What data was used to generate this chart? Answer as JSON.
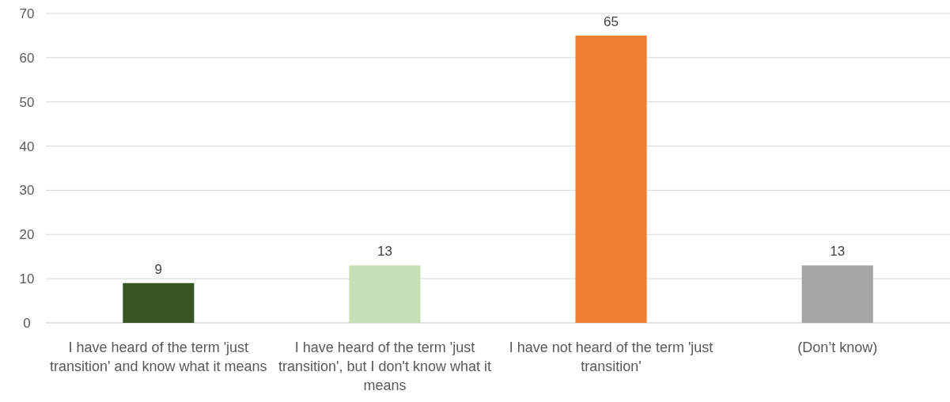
{
  "chart_data": {
    "type": "bar",
    "categories": [
      "I have heard of the term 'just transition' and know what it means",
      "I have heard of the term 'just transition', but I don't know what it means",
      "I have not heard of the term 'just transition'",
      "(Don’t know)"
    ],
    "values": [
      9,
      13,
      65,
      13
    ],
    "colors": [
      "#375623",
      "#c5e0b4",
      "#ed7d31",
      "#a5a5a5"
    ],
    "ylim": [
      0,
      70
    ],
    "yticks": [
      0,
      10,
      20,
      30,
      40,
      50,
      60,
      70
    ],
    "grid": "y",
    "data_labels": true
  }
}
